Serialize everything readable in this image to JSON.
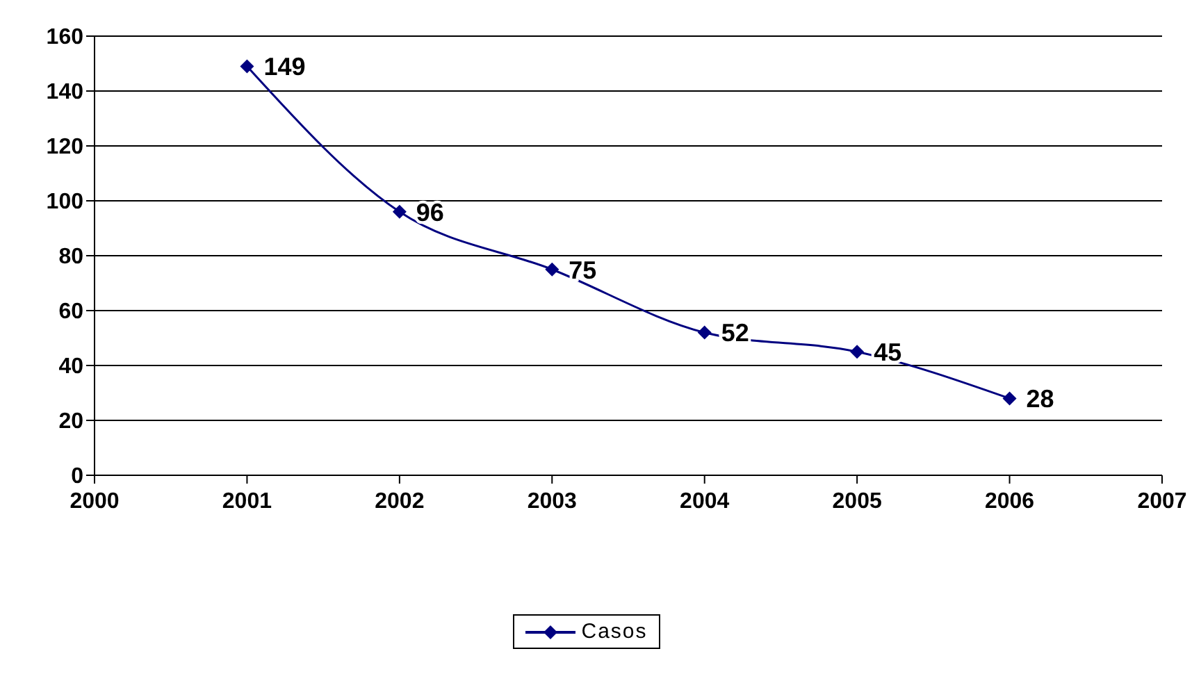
{
  "chart_data": {
    "type": "line",
    "x": [
      2001,
      2002,
      2003,
      2004,
      2005,
      2006
    ],
    "series": [
      {
        "name": "Casos",
        "color": "#000080",
        "values": [
          149,
          96,
          75,
          52,
          45,
          28
        ]
      }
    ],
    "xlim": [
      2000,
      2007
    ],
    "xticks": [
      2000,
      2001,
      2002,
      2003,
      2004,
      2005,
      2006,
      2007
    ],
    "ylim": [
      0,
      160
    ],
    "yticks": [
      0,
      20,
      40,
      60,
      80,
      100,
      120,
      140,
      160
    ],
    "grid": "y",
    "legend": "bottom",
    "marker": "diamond",
    "line_style": "solid",
    "data_labels": true
  }
}
